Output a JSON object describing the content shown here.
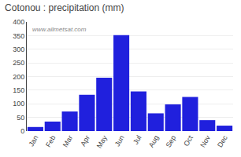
{
  "chart_data": {
    "type": "bar",
    "title": "Cotonou : precipitation (mm)",
    "categories": [
      "Jan",
      "Feb",
      "Mar",
      "Apr",
      "May",
      "Jun",
      "Jul",
      "Aug",
      "Sep",
      "Oct",
      "Nov",
      "Dec"
    ],
    "values": [
      15,
      35,
      72,
      133,
      196,
      352,
      145,
      65,
      98,
      125,
      40,
      20
    ],
    "color": "#2020dd",
    "ylim": [
      0,
      400
    ],
    "yticks": [
      0,
      50,
      100,
      150,
      200,
      250,
      300,
      350,
      400
    ],
    "grid": true,
    "annotations": [
      "www.allmetsat.com"
    ]
  }
}
